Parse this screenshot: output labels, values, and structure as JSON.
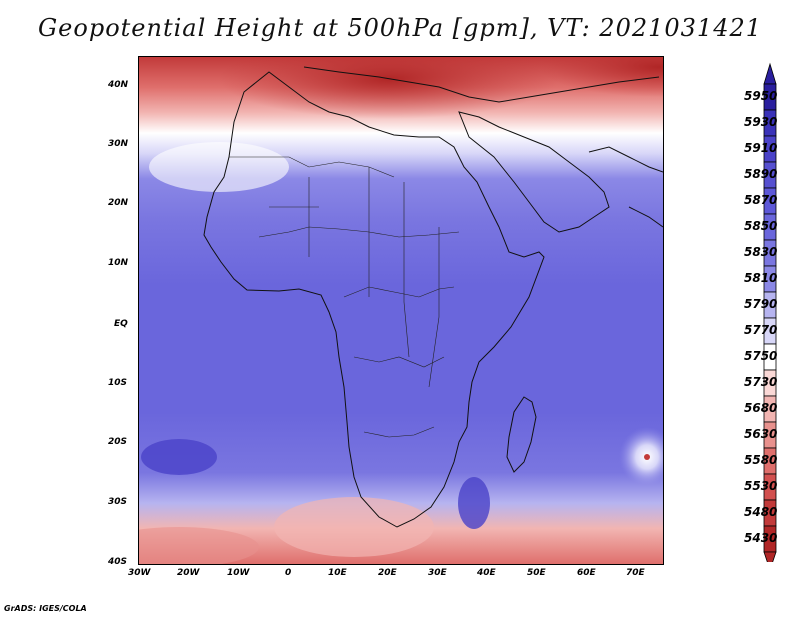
{
  "title": "Geopotential Height at 500hPa [gpm], VT: 2021031421",
  "credit": "GrADS: IGES/COLA",
  "lat_labels": [
    "40N",
    "30N",
    "20N",
    "10N",
    "EQ",
    "10S",
    "20S",
    "30S",
    "40S"
  ],
  "lon_labels": [
    "30W",
    "20W",
    "10W",
    "0",
    "10E",
    "20E",
    "30E",
    "40E",
    "50E",
    "60E",
    "70E"
  ],
  "colorbar": {
    "levels": [
      "5950",
      "5930",
      "5910",
      "5890",
      "5870",
      "5850",
      "5830",
      "5810",
      "5790",
      "5770",
      "5750",
      "5730",
      "5680",
      "5630",
      "5580",
      "5530",
      "5480",
      "5430"
    ],
    "colors": [
      "#2a1f9e",
      "#3a32b8",
      "#4a42c8",
      "#5650d0",
      "#5d58d8",
      "#6a66dc",
      "#7a76e0",
      "#8b88e6",
      "#b6b4f0",
      "#d8d7f8",
      "#ffffff",
      "#fad8d6",
      "#f2b5b2",
      "#e8918d",
      "#df6f6c",
      "#d2504f",
      "#c23a3a",
      "#b02626"
    ]
  }
}
